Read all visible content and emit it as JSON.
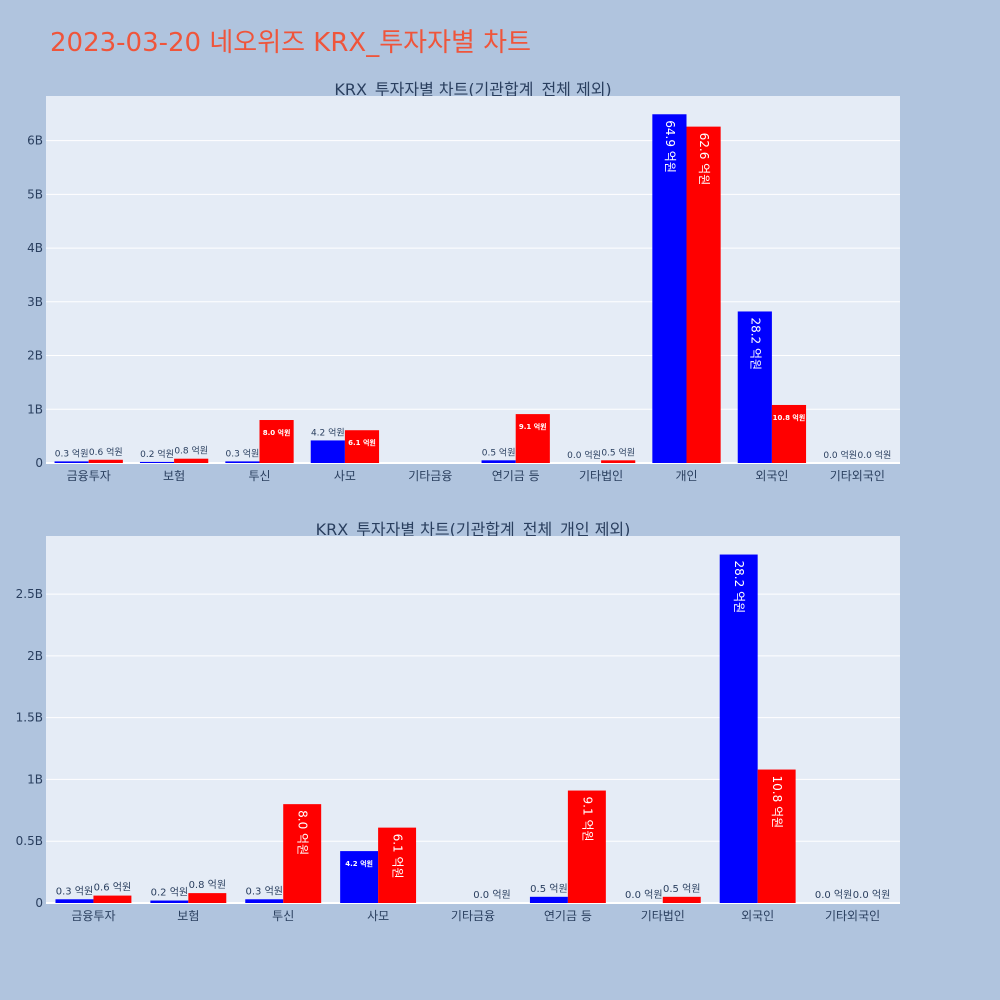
{
  "page_title": "2023-03-20 네오위즈 KRX_투자자별 차트",
  "colors": {
    "buy": "#0000ff",
    "sell": "#ff0000",
    "plot_bg": "#e5ecf6",
    "page_bg": "#b0c4de",
    "title": "#ef553b"
  },
  "chart_data": [
    {
      "type": "bar",
      "title": "KRX_투자자별 차트(기관합계_전체 제외)",
      "categories": [
        "금융투자",
        "보험",
        "투신",
        "사모",
        "기타금융",
        "연기금 등",
        "기타법인",
        "개인",
        "외국인",
        "기타외국인"
      ],
      "series": [
        {
          "values": [
            0.03,
            0.02,
            0.03,
            0.42,
            0,
            0.05,
            0.0,
            6.49,
            2.82,
            0.0
          ],
          "labels": [
            "0.3 억원",
            "0.2 억원",
            "0.3 억원",
            "4.2 억원",
            "",
            "0.5 억원",
            "0.0 억원",
            "64.9 억원",
            "28.2 억원",
            "0.0 억원"
          ]
        },
        {
          "values": [
            0.06,
            0.08,
            0.8,
            0.61,
            0,
            0.91,
            0.05,
            6.26,
            1.08,
            0.0
          ],
          "labels": [
            "0.6 억원",
            "0.8 억원",
            "8.0 억원",
            "6.1 억원",
            "",
            "9.1 억원",
            "0.5 억원",
            "62.6 억원",
            "10.8 억원",
            "0.0 억원"
          ]
        }
      ],
      "ylim": [
        0,
        6.83
      ],
      "yticks": [
        0,
        1,
        2,
        3,
        4,
        5,
        6
      ],
      "ytick_labels": [
        "0",
        "1B",
        "2B",
        "3B",
        "4B",
        "5B",
        "6B"
      ],
      "grid": true
    },
    {
      "type": "bar",
      "title": "KRX_투자자별 차트(기관합계_전체_개인 제외)",
      "categories": [
        "금융투자",
        "보험",
        "투신",
        "사모",
        "기타금융",
        "연기금 등",
        "기타법인",
        "외국인",
        "기타외국인"
      ],
      "series": [
        {
          "values": [
            0.03,
            0.02,
            0.03,
            0.42,
            0,
            0.05,
            0.0,
            2.82,
            0.0
          ],
          "labels": [
            "0.3 억원",
            "0.2 억원",
            "0.3 억원",
            "4.2 억원",
            "",
            "0.5 억원",
            "0.0 억원",
            "28.2 억원",
            "0.0 억원"
          ]
        },
        {
          "values": [
            0.06,
            0.08,
            0.8,
            0.61,
            0.0,
            0.91,
            0.05,
            1.08,
            0.0
          ],
          "labels": [
            "0.6 억원",
            "0.8 억원",
            "8.0 억원",
            "6.1 억원",
            "0.0 억원",
            "9.1 억원",
            "0.5 억원",
            "10.8 억원",
            "0.0 억원"
          ]
        }
      ],
      "ylim": [
        0,
        2.97
      ],
      "yticks": [
        0,
        0.5,
        1,
        1.5,
        2,
        2.5
      ],
      "ytick_labels": [
        "0",
        "0.5B",
        "1B",
        "1.5B",
        "2B",
        "2.5B"
      ],
      "grid": true
    }
  ]
}
